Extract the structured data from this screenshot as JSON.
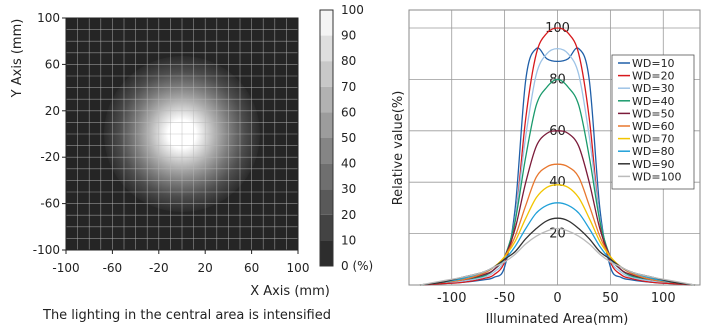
{
  "chart_data": [
    {
      "type": "heatmap",
      "xlabel": "X Axis (mm)",
      "ylabel": "Y Axis (mm)",
      "xlim": [
        -100,
        100
      ],
      "ylim": [
        -100,
        100
      ],
      "x_ticks": [
        "-100",
        "-60",
        "-20",
        "20",
        "60",
        "100"
      ],
      "y_ticks": [
        "100",
        "60",
        "20",
        "-20",
        "-60",
        "-100"
      ],
      "grid": true,
      "colorbar": {
        "ticks": [
          "100",
          "90",
          "80",
          "70",
          "60",
          "50",
          "40",
          "30",
          "20",
          "10",
          "0 (%)"
        ],
        "min": 0,
        "max": 100,
        "low_color": "#222222",
        "high_color": "#ffffff"
      },
      "caption": "The lighting in the central area is intensified"
    },
    {
      "type": "line",
      "ylabel": "Relative value(%)",
      "xlabel": "Illuminated Area(mm)",
      "xlim": [
        -130,
        130
      ],
      "ylim": [
        0,
        100
      ],
      "x_ticks": [
        "-100",
        "-50",
        "0",
        "50",
        "100"
      ],
      "y_labels": [
        "100",
        "80",
        "60",
        "40",
        "20"
      ],
      "grid": true,
      "legend_position": "right",
      "x": [
        -130,
        -110,
        -90,
        -70,
        -60,
        -50,
        -40,
        -30,
        -20,
        -10,
        0,
        10,
        20,
        30,
        40,
        50,
        60,
        70,
        90,
        110,
        130
      ],
      "series": [
        {
          "name": "WD=10",
          "color": "#1f5fa8",
          "values": [
            0,
            0.5,
            1,
            2,
            3,
            7,
            30,
            80,
            92,
            88,
            87,
            88,
            92,
            80,
            30,
            7,
            3,
            2,
            1,
            0.5,
            0
          ]
        },
        {
          "name": "WD=20",
          "color": "#d7191c",
          "values": [
            0,
            0.5,
            1,
            2.5,
            4,
            9,
            25,
            65,
            90,
            98,
            100,
            98,
            90,
            65,
            25,
            9,
            4,
            2.5,
            1,
            0.5,
            0
          ]
        },
        {
          "name": "WD=30",
          "color": "#9ec3e6",
          "values": [
            0,
            1,
            1.5,
            3,
            5,
            10,
            26,
            58,
            82,
            90,
            92,
            90,
            82,
            58,
            26,
            10,
            5,
            3,
            1.5,
            1,
            0
          ]
        },
        {
          "name": "WD=40",
          "color": "#1a9a6c",
          "values": [
            0,
            1,
            2,
            3.5,
            6,
            11,
            25,
            50,
            70,
            77,
            80,
            77,
            70,
            50,
            25,
            11,
            6,
            3.5,
            2,
            1,
            0
          ]
        },
        {
          "name": "WD=50",
          "color": "#7b1b3a",
          "values": [
            0,
            1,
            2,
            4,
            6,
            11,
            22,
            40,
            54,
            59,
            60,
            59,
            54,
            40,
            22,
            11,
            6,
            4,
            2,
            1,
            0
          ]
        },
        {
          "name": "WD=60",
          "color": "#e8772e",
          "values": [
            0,
            1,
            2,
            4.5,
            7,
            11,
            19,
            31,
            42,
            46,
            47,
            46,
            42,
            31,
            19,
            11,
            7,
            4.5,
            2,
            1,
            0
          ]
        },
        {
          "name": "WD=70",
          "color": "#f2c500",
          "values": [
            0,
            1,
            2.5,
            5,
            7,
            11,
            17,
            26,
            34,
            38,
            39,
            38,
            34,
            26,
            17,
            11,
            7,
            5,
            2.5,
            1,
            0
          ]
        },
        {
          "name": "WD=80",
          "color": "#1fa0d8",
          "values": [
            0,
            1,
            2.5,
            5,
            7,
            10,
            15,
            22,
            28,
            31,
            32,
            31,
            28,
            22,
            15,
            10,
            7,
            5,
            2.5,
            1,
            0
          ]
        },
        {
          "name": "WD=90",
          "color": "#333333",
          "values": [
            0,
            1,
            3,
            5,
            7,
            10,
            13,
            18,
            22,
            25,
            26,
            25,
            22,
            18,
            13,
            10,
            7,
            5,
            3,
            1,
            0
          ]
        },
        {
          "name": "WD=100",
          "color": "#bbbbbb",
          "values": [
            0,
            1.5,
            3,
            5,
            7,
            9,
            12,
            16,
            19,
            21,
            22,
            21,
            19,
            16,
            12,
            9,
            7,
            5,
            3,
            1.5,
            0
          ]
        }
      ]
    }
  ]
}
